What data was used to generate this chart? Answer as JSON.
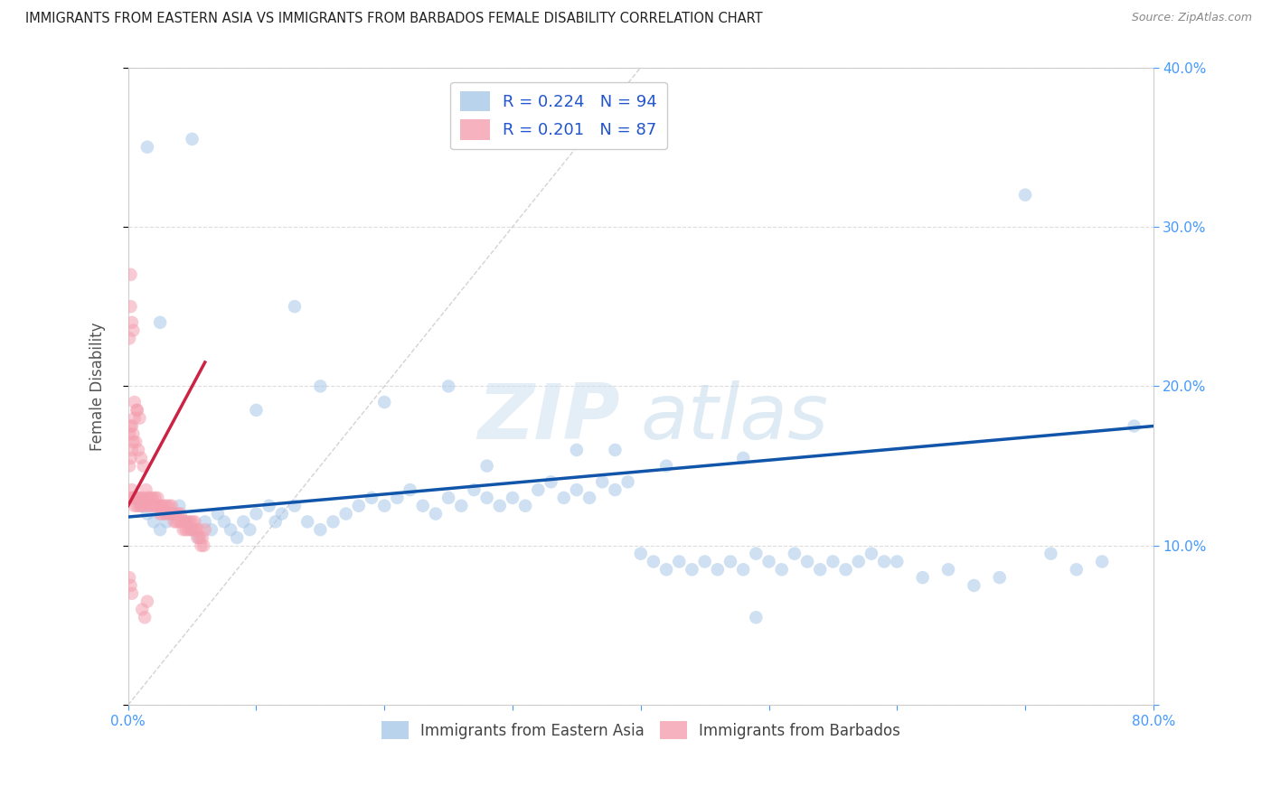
{
  "title": "IMMIGRANTS FROM EASTERN ASIA VS IMMIGRANTS FROM BARBADOS FEMALE DISABILITY CORRELATION CHART",
  "source": "Source: ZipAtlas.com",
  "ylabel": "Female Disability",
  "legend_entries": [
    {
      "label": "Immigrants from Eastern Asia",
      "color": "#a8c8e8",
      "R": 0.224,
      "N": 94
    },
    {
      "label": "Immigrants from Barbados",
      "color": "#f4a0b0",
      "R": 0.201,
      "N": 87
    }
  ],
  "xlim": [
    0.0,
    0.8
  ],
  "ylim": [
    0.0,
    0.4
  ],
  "xticks": [
    0.0,
    0.1,
    0.2,
    0.3,
    0.4,
    0.5,
    0.6,
    0.7,
    0.8
  ],
  "yticks": [
    0.0,
    0.1,
    0.2,
    0.3,
    0.4
  ],
  "blue_scatter_x": [
    0.005,
    0.01,
    0.015,
    0.02,
    0.025,
    0.03,
    0.035,
    0.04,
    0.045,
    0.05,
    0.055,
    0.06,
    0.065,
    0.07,
    0.075,
    0.08,
    0.085,
    0.09,
    0.095,
    0.1,
    0.11,
    0.115,
    0.12,
    0.13,
    0.14,
    0.15,
    0.16,
    0.17,
    0.18,
    0.19,
    0.2,
    0.21,
    0.22,
    0.23,
    0.24,
    0.25,
    0.26,
    0.27,
    0.28,
    0.29,
    0.3,
    0.31,
    0.32,
    0.33,
    0.34,
    0.35,
    0.36,
    0.37,
    0.38,
    0.39,
    0.4,
    0.41,
    0.42,
    0.43,
    0.44,
    0.45,
    0.46,
    0.47,
    0.48,
    0.49,
    0.5,
    0.51,
    0.52,
    0.53,
    0.54,
    0.55,
    0.56,
    0.57,
    0.58,
    0.59,
    0.28,
    0.35,
    0.42,
    0.48,
    0.2,
    0.15,
    0.1,
    0.05,
    0.025,
    0.015,
    0.6,
    0.62,
    0.64,
    0.66,
    0.68,
    0.7,
    0.72,
    0.74,
    0.76,
    0.785,
    0.49,
    0.25,
    0.38,
    0.13
  ],
  "blue_scatter_y": [
    0.13,
    0.125,
    0.12,
    0.115,
    0.11,
    0.115,
    0.12,
    0.125,
    0.115,
    0.11,
    0.105,
    0.115,
    0.11,
    0.12,
    0.115,
    0.11,
    0.105,
    0.115,
    0.11,
    0.12,
    0.125,
    0.115,
    0.12,
    0.125,
    0.115,
    0.11,
    0.115,
    0.12,
    0.125,
    0.13,
    0.125,
    0.13,
    0.135,
    0.125,
    0.12,
    0.13,
    0.125,
    0.135,
    0.13,
    0.125,
    0.13,
    0.125,
    0.135,
    0.14,
    0.13,
    0.135,
    0.13,
    0.14,
    0.135,
    0.14,
    0.095,
    0.09,
    0.085,
    0.09,
    0.085,
    0.09,
    0.085,
    0.09,
    0.085,
    0.095,
    0.09,
    0.085,
    0.095,
    0.09,
    0.085,
    0.09,
    0.085,
    0.09,
    0.095,
    0.09,
    0.15,
    0.16,
    0.15,
    0.155,
    0.19,
    0.2,
    0.185,
    0.355,
    0.24,
    0.35,
    0.09,
    0.08,
    0.085,
    0.075,
    0.08,
    0.32,
    0.095,
    0.085,
    0.09,
    0.175,
    0.055,
    0.2,
    0.16,
    0.25
  ],
  "pink_scatter_x": [
    0.002,
    0.003,
    0.004,
    0.005,
    0.006,
    0.007,
    0.008,
    0.009,
    0.01,
    0.011,
    0.012,
    0.013,
    0.014,
    0.015,
    0.016,
    0.017,
    0.018,
    0.019,
    0.02,
    0.021,
    0.022,
    0.023,
    0.024,
    0.025,
    0.026,
    0.027,
    0.028,
    0.029,
    0.03,
    0.031,
    0.032,
    0.033,
    0.034,
    0.035,
    0.036,
    0.037,
    0.038,
    0.039,
    0.04,
    0.041,
    0.042,
    0.043,
    0.044,
    0.045,
    0.046,
    0.047,
    0.048,
    0.049,
    0.05,
    0.051,
    0.052,
    0.053,
    0.054,
    0.055,
    0.056,
    0.057,
    0.058,
    0.059,
    0.06,
    0.001,
    0.002,
    0.003,
    0.004,
    0.001,
    0.003,
    0.005,
    0.007,
    0.002,
    0.004,
    0.006,
    0.008,
    0.01,
    0.012,
    0.002,
    0.003,
    0.004,
    0.001,
    0.005,
    0.007,
    0.009,
    0.011,
    0.013,
    0.015,
    0.001,
    0.002,
    0.003,
    0.002
  ],
  "pink_scatter_y": [
    0.13,
    0.135,
    0.13,
    0.125,
    0.13,
    0.125,
    0.13,
    0.125,
    0.13,
    0.125,
    0.13,
    0.125,
    0.135,
    0.13,
    0.125,
    0.13,
    0.125,
    0.13,
    0.125,
    0.13,
    0.125,
    0.13,
    0.125,
    0.12,
    0.125,
    0.12,
    0.125,
    0.12,
    0.125,
    0.12,
    0.125,
    0.12,
    0.125,
    0.12,
    0.115,
    0.12,
    0.115,
    0.12,
    0.115,
    0.12,
    0.115,
    0.11,
    0.115,
    0.11,
    0.115,
    0.11,
    0.115,
    0.11,
    0.115,
    0.11,
    0.115,
    0.11,
    0.105,
    0.11,
    0.105,
    0.1,
    0.105,
    0.1,
    0.11,
    0.15,
    0.155,
    0.16,
    0.165,
    0.17,
    0.175,
    0.18,
    0.185,
    0.175,
    0.17,
    0.165,
    0.16,
    0.155,
    0.15,
    0.25,
    0.24,
    0.235,
    0.23,
    0.19,
    0.185,
    0.18,
    0.06,
    0.055,
    0.065,
    0.08,
    0.075,
    0.07,
    0.27
  ],
  "blue_trend_x": [
    0.0,
    0.8
  ],
  "blue_trend_y": [
    0.118,
    0.175
  ],
  "pink_trend_x": [
    0.0,
    0.06
  ],
  "pink_trend_y": [
    0.125,
    0.215
  ],
  "ref_line_x": [
    0.0,
    0.4
  ],
  "ref_line_y": [
    0.0,
    0.4
  ],
  "blue_color": "#a8c8e8",
  "pink_color": "#f4a0b0",
  "blue_trend_color": "#1155aa",
  "pink_trend_color": "#cc2244",
  "ref_line_color": "#c8c8c8",
  "watermark_zip": "ZIP",
  "watermark_atlas": "atlas",
  "title_color": "#222222",
  "axis_label_color": "#555555",
  "tick_color": "#4499ff",
  "source_color": "#888888",
  "legend_label_color": "#2255cc"
}
